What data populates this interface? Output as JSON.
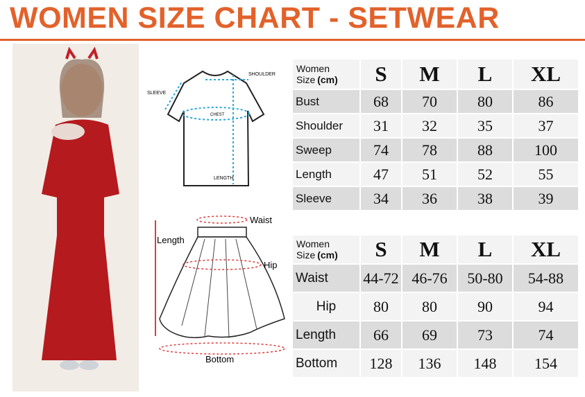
{
  "header": {
    "title": "WOMEN SIZE CHART - SETWEAR"
  },
  "shirt_diagram": {
    "labels": [
      "SHOULDER",
      "SLEEVE",
      "CHEST",
      "LENGTH"
    ]
  },
  "skirt_diagram": {
    "labels": [
      "Waist",
      "Length",
      "Hip",
      "Bottom"
    ]
  },
  "tables": [
    {
      "corner": {
        "line1": "Women",
        "line2": "Size",
        "unit": "(cm)"
      },
      "columns": [
        "S",
        "M",
        "L",
        "XL"
      ],
      "rows": [
        [
          "Bust",
          68,
          70,
          80,
          86
        ],
        [
          "Shoulder",
          31,
          32,
          35,
          37
        ],
        [
          "Sweep",
          74,
          78,
          88,
          100
        ],
        [
          "Length",
          47,
          51,
          52,
          55
        ],
        [
          "Sleeve",
          34,
          36,
          38,
          39
        ]
      ]
    },
    {
      "corner": {
        "line1": "Women",
        "line2": "Size",
        "unit": "(cm)"
      },
      "columns": [
        "S",
        "M",
        "L",
        "XL"
      ],
      "rows": [
        [
          "Waist",
          "44-72",
          "46-76",
          "50-80",
          "54-88"
        ],
        [
          "Hip",
          80,
          80,
          90,
          94
        ],
        [
          "Length",
          66,
          69,
          73,
          74
        ],
        [
          "Bottom",
          128,
          136,
          148,
          154
        ]
      ]
    }
  ]
}
